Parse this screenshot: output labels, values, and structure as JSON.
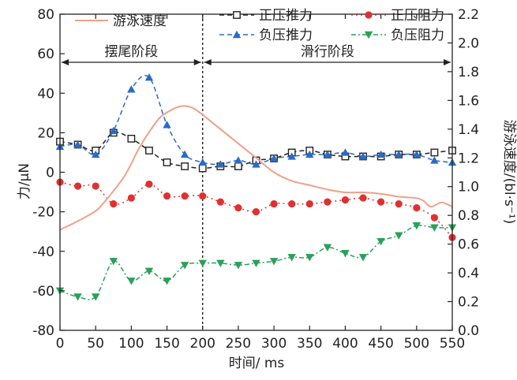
{
  "chart_data": {
    "type": "line",
    "xlabel": "时间/ ms",
    "ylabel_left": "力/μN",
    "ylabel_right": "游泳速度/(bl·s⁻¹)",
    "xlim": [
      0,
      550
    ],
    "ylim_left": [
      -80,
      80
    ],
    "ylim_right": [
      0.0,
      2.2
    ],
    "x_ticks": [
      "0",
      "50",
      "100",
      "150",
      "200",
      "250",
      "300",
      "350",
      "400",
      "450",
      "500",
      "550"
    ],
    "y_left_ticks": [
      "-80",
      "-60",
      "-40",
      "-20",
      "0",
      "20",
      "40",
      "60",
      "80"
    ],
    "y_right_ticks": [
      "0.0",
      "0.2",
      "0.4",
      "0.6",
      "0.8",
      "1.0",
      "1.2",
      "1.4",
      "1.6",
      "1.8",
      "2.0",
      "2.2"
    ],
    "phases": [
      {
        "label": "摆尾阶段",
        "x_start": 0,
        "x_end": 200
      },
      {
        "label": "滑行阶段",
        "x_start": 200,
        "x_end": 550
      }
    ],
    "divider_x": 200,
    "legend": [
      {
        "key": "speed",
        "label": "游泳速度"
      },
      {
        "key": "pos_thrust",
        "label": "正压推力"
      },
      {
        "key": "pos_drag",
        "label": "正压阻力"
      },
      {
        "key": "neg_thrust",
        "label": "负压推力"
      },
      {
        "key": "neg_drag",
        "label": "负压阻力"
      }
    ],
    "colors": {
      "speed": "#f0a08a",
      "pos_thrust": "#222222",
      "pos_drag": "#e03030",
      "neg_thrust": "#2a6cc4",
      "neg_drag": "#2aa05a"
    },
    "series": [
      {
        "key": "pos_thrust",
        "name": "正压推力",
        "axis": "left",
        "marker": "square-open",
        "dash": "6,4",
        "x": [
          0,
          25,
          50,
          75,
          100,
          125,
          150,
          175,
          200,
          225,
          250,
          275,
          300,
          325,
          350,
          375,
          400,
          425,
          450,
          475,
          500,
          525,
          550
        ],
        "y": [
          15.5,
          14,
          11,
          20,
          17,
          11,
          5,
          3,
          2,
          3,
          3,
          6,
          7,
          10,
          11,
          9,
          8,
          8,
          8,
          9,
          9,
          10,
          11
        ]
      },
      {
        "key": "neg_thrust",
        "name": "负压推力",
        "axis": "left",
        "marker": "triangle-up",
        "dash": "6,4",
        "x": [
          0,
          25,
          50,
          75,
          100,
          125,
          150,
          175,
          200,
          225,
          250,
          275,
          300,
          325,
          350,
          375,
          400,
          425,
          450,
          475,
          500,
          525,
          550
        ],
        "y": [
          13,
          14,
          9,
          21,
          42,
          48,
          24,
          9,
          5,
          4,
          6,
          4,
          7,
          8,
          9,
          9,
          10,
          8,
          9,
          9,
          9,
          6,
          5
        ]
      },
      {
        "key": "pos_drag",
        "name": "正压阻力",
        "axis": "left",
        "marker": "circle",
        "dash": "2,4",
        "x": [
          0,
          25,
          50,
          75,
          100,
          125,
          150,
          175,
          200,
          225,
          250,
          275,
          300,
          325,
          350,
          375,
          400,
          425,
          450,
          475,
          500,
          525,
          550
        ],
        "y": [
          -5,
          -7,
          -7,
          -16,
          -13,
          -6,
          -12,
          -12,
          -12,
          -15,
          -18,
          -20,
          -16,
          -16,
          -16,
          -15,
          -14,
          -13,
          -15,
          -16,
          -18,
          -23,
          -33
        ]
      },
      {
        "key": "neg_drag",
        "name": "负压阻力",
        "axis": "left",
        "marker": "triangle-down",
        "dash": "6,3,2,3",
        "x": [
          0,
          25,
          50,
          75,
          100,
          125,
          150,
          175,
          200,
          225,
          250,
          275,
          300,
          325,
          350,
          375,
          400,
          425,
          450,
          475,
          500,
          525,
          550
        ],
        "y": [
          -60,
          -63,
          -63,
          -45,
          -55,
          -50,
          -55,
          -47,
          -46,
          -46,
          -47,
          -46,
          -45,
          -43,
          -43,
          -38,
          -41,
          -43,
          -35,
          -32,
          -27,
          -28,
          -28
        ]
      },
      {
        "key": "speed",
        "name": "游泳速度",
        "axis": "right",
        "marker": "none",
        "dash": "",
        "x": [
          0,
          25,
          50,
          60,
          75,
          90,
          100,
          110,
          125,
          140,
          155,
          170,
          185,
          200,
          215,
          230,
          250,
          275,
          300,
          325,
          350,
          375,
          400,
          425,
          450,
          475,
          500,
          510,
          520,
          535,
          550
        ],
        "y": [
          0.7,
          0.76,
          0.83,
          0.88,
          0.97,
          1.07,
          1.16,
          1.26,
          1.38,
          1.48,
          1.53,
          1.56,
          1.55,
          1.5,
          1.44,
          1.38,
          1.3,
          1.2,
          1.1,
          1.04,
          1.01,
          0.98,
          0.96,
          0.96,
          0.95,
          0.93,
          0.92,
          0.9,
          0.86,
          0.89,
          0.86
        ]
      }
    ]
  }
}
